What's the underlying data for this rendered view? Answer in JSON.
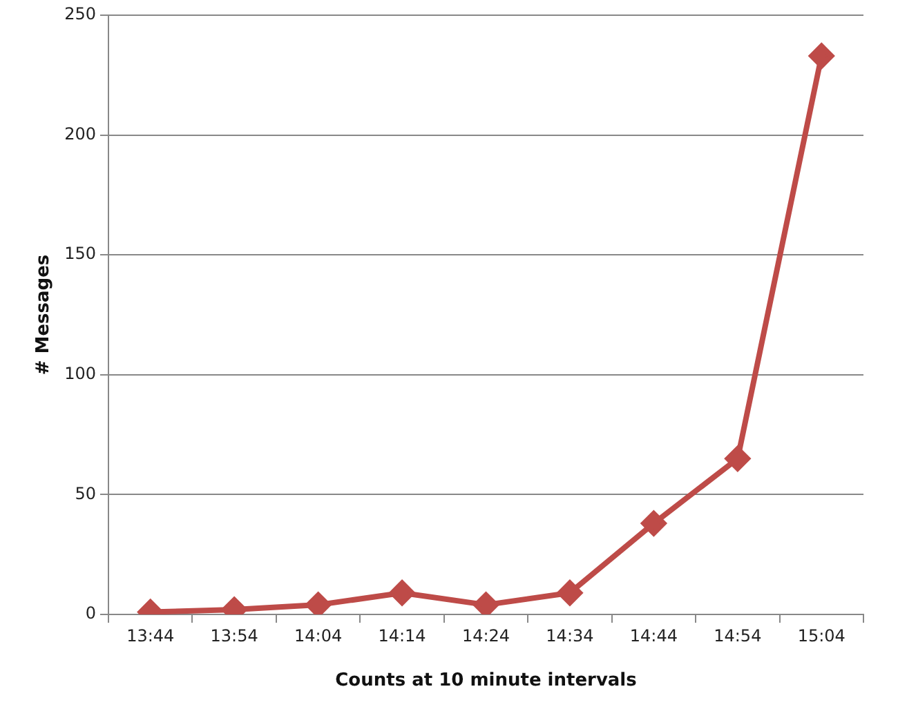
{
  "chart_data": {
    "type": "line",
    "xlabel": "Counts at 10 minute intervals",
    "ylabel": "# Messages",
    "categories": [
      "13:44",
      "13:54",
      "14:04",
      "14:14",
      "14:24",
      "14:34",
      "14:44",
      "14:54",
      "15:04"
    ],
    "series": [
      {
        "color": "#be4b48",
        "values": [
          1,
          2,
          4,
          9,
          4,
          9,
          38,
          65,
          233
        ]
      }
    ],
    "ylim": [
      0,
      250
    ],
    "yticks": [
      0,
      50,
      100,
      150,
      200,
      250
    ],
    "grid": "y",
    "legend": false,
    "marker": "diamond",
    "line_style": "solid"
  }
}
